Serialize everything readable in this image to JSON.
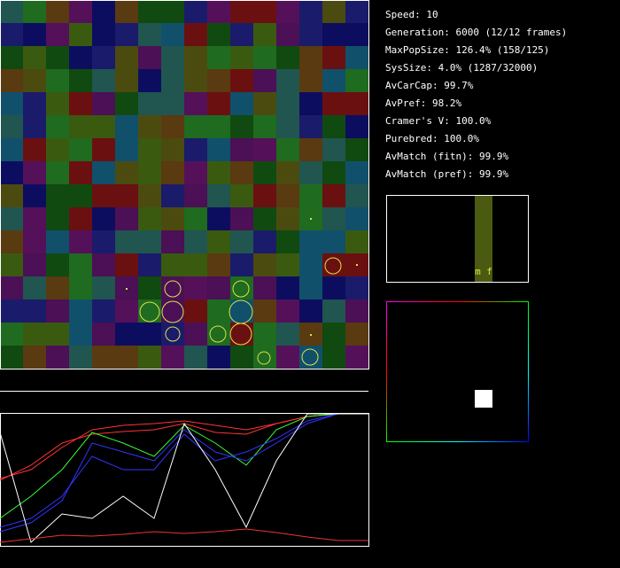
{
  "stats": [
    "Speed: 10",
    "Generation: 6000 (12/12 frames)",
    "MaxPopSize: 126.4% (158/125)",
    "SysSize: 4.0% (1287/32000)",
    "AvCarCap: 99.7%",
    "AvPref: 98.2%",
    "Cramer's V: 100.0%",
    "Purebred: 100.0%",
    "AvMatch (fitn): 99.9%",
    "AvMatch (pref): 99.9%"
  ],
  "histogram_label": "m f"
}
